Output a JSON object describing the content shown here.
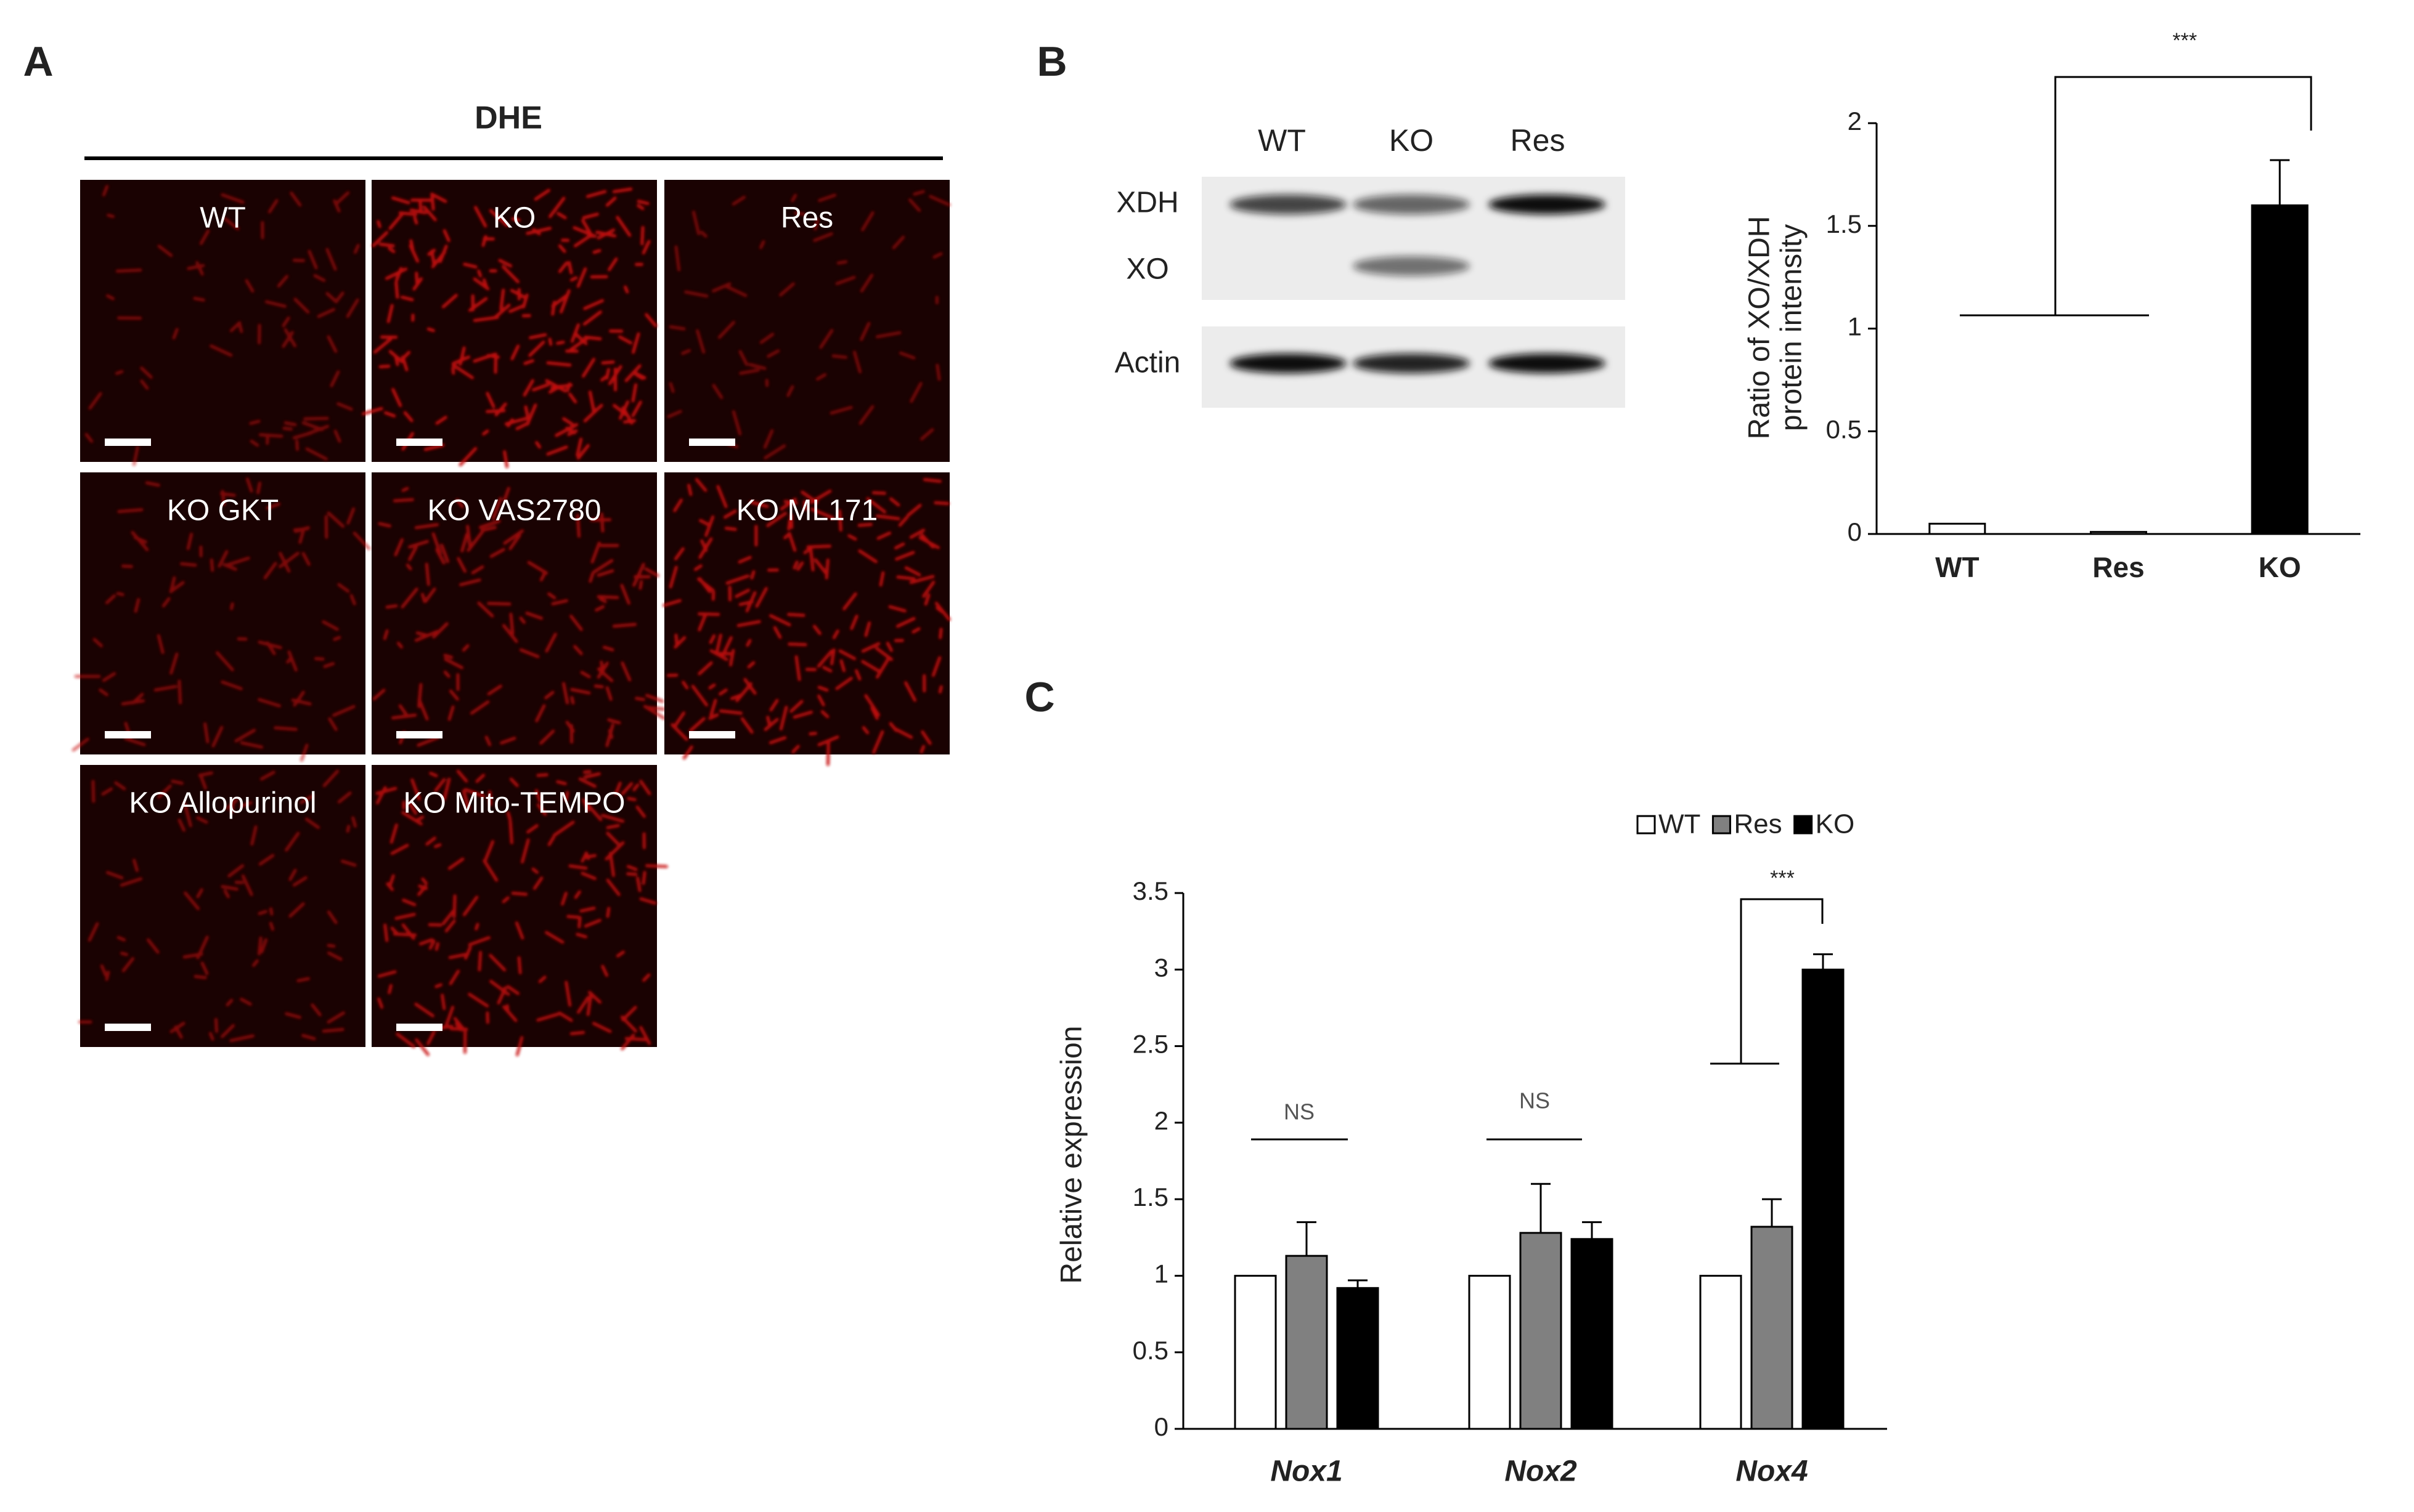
{
  "panel_a": {
    "label": "A",
    "title": "DHE",
    "images": [
      "WT",
      "KO",
      "Res",
      "KO GKT",
      "KO VAS2780",
      "KO ML171",
      "KO Allopurinol",
      "KO Mito-TEMPO"
    ]
  },
  "panel_b": {
    "label": "B",
    "blot": {
      "lanes": [
        "WT",
        "KO",
        "Res"
      ],
      "bands": [
        "XDH",
        "XO",
        "Actin"
      ]
    }
  },
  "panel_c": {
    "label": "C"
  },
  "chart_data": [
    {
      "type": "bar",
      "ylabel": [
        "Ratio of XO/XDH",
        "protein intensity"
      ],
      "categories": [
        "WT",
        "Res",
        "KO"
      ],
      "values": [
        0.05,
        0.01,
        1.6
      ],
      "errors": [
        null,
        null,
        0.22
      ],
      "colors": [
        "#ffffff",
        "#ffffff",
        "#000000"
      ],
      "ylim": [
        0,
        2
      ],
      "yticks": [
        0,
        0.5,
        1,
        1.5,
        2
      ],
      "annotations": [
        "***"
      ]
    },
    {
      "type": "grouped-bar",
      "ylabel": "Relative expression",
      "categories": [
        "Nox1",
        "Nox2",
        "Nox4"
      ],
      "series": [
        {
          "name": "WT",
          "color": "#ffffff",
          "values": [
            1,
            1,
            1
          ]
        },
        {
          "name": "Res",
          "color": "#808080",
          "values": [
            1.13,
            1.28,
            1.32
          ],
          "errors": [
            0.22,
            0.32,
            0.18
          ]
        },
        {
          "name": "KO",
          "color": "#000000",
          "values": [
            0.92,
            1.24,
            3.0
          ],
          "errors": [
            0.05,
            0.11,
            0.1
          ]
        }
      ],
      "ylim": [
        0,
        3.5
      ],
      "yticks": [
        0,
        0.5,
        1,
        1.5,
        2,
        2.5,
        3,
        3.5
      ],
      "annotations": [
        "NS",
        "NS",
        "***"
      ]
    }
  ]
}
